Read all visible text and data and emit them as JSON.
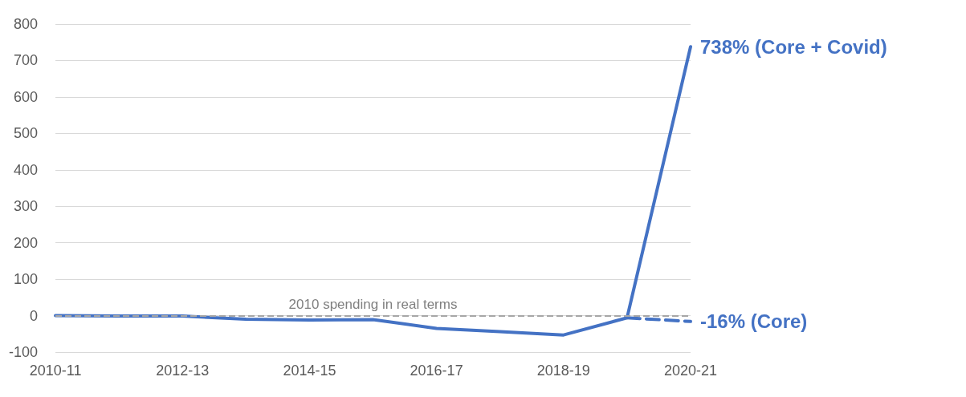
{
  "chart_data": {
    "type": "line",
    "categories": [
      "2010-11",
      null,
      "2012-13",
      null,
      "2014-15",
      null,
      "2016-17",
      null,
      "2018-19",
      null,
      "2020-21"
    ],
    "series": [
      {
        "color": "#4472c4",
        "line_style": "solid",
        "values": [
          0,
          -1,
          -1,
          -10,
          -12,
          -11,
          -35,
          -44,
          -53,
          -6,
          738
        ],
        "value_labels": [
          null,
          null,
          null,
          null,
          null,
          null,
          null,
          null,
          null,
          null,
          "738% (Core + Covid)"
        ]
      },
      {
        "color": "#4472c4",
        "line_style": "dashed",
        "values": [
          null,
          null,
          null,
          null,
          null,
          null,
          null,
          null,
          null,
          -6,
          -16
        ],
        "value_labels": [
          null,
          null,
          null,
          null,
          null,
          null,
          null,
          null,
          null,
          null,
          "-16% (Core)"
        ]
      }
    ],
    "ylim": [
      -100,
      800
    ],
    "yticks": [
      -100,
      0,
      100,
      200,
      300,
      400,
      500,
      600,
      700,
      800
    ],
    "grid": "y",
    "marker": "none",
    "ref_lines": [
      {
        "axis": "y",
        "value": 0,
        "label": "2010 spending in real terms",
        "color": "#a6a6a6",
        "line_style": "dashed"
      }
    ]
  }
}
